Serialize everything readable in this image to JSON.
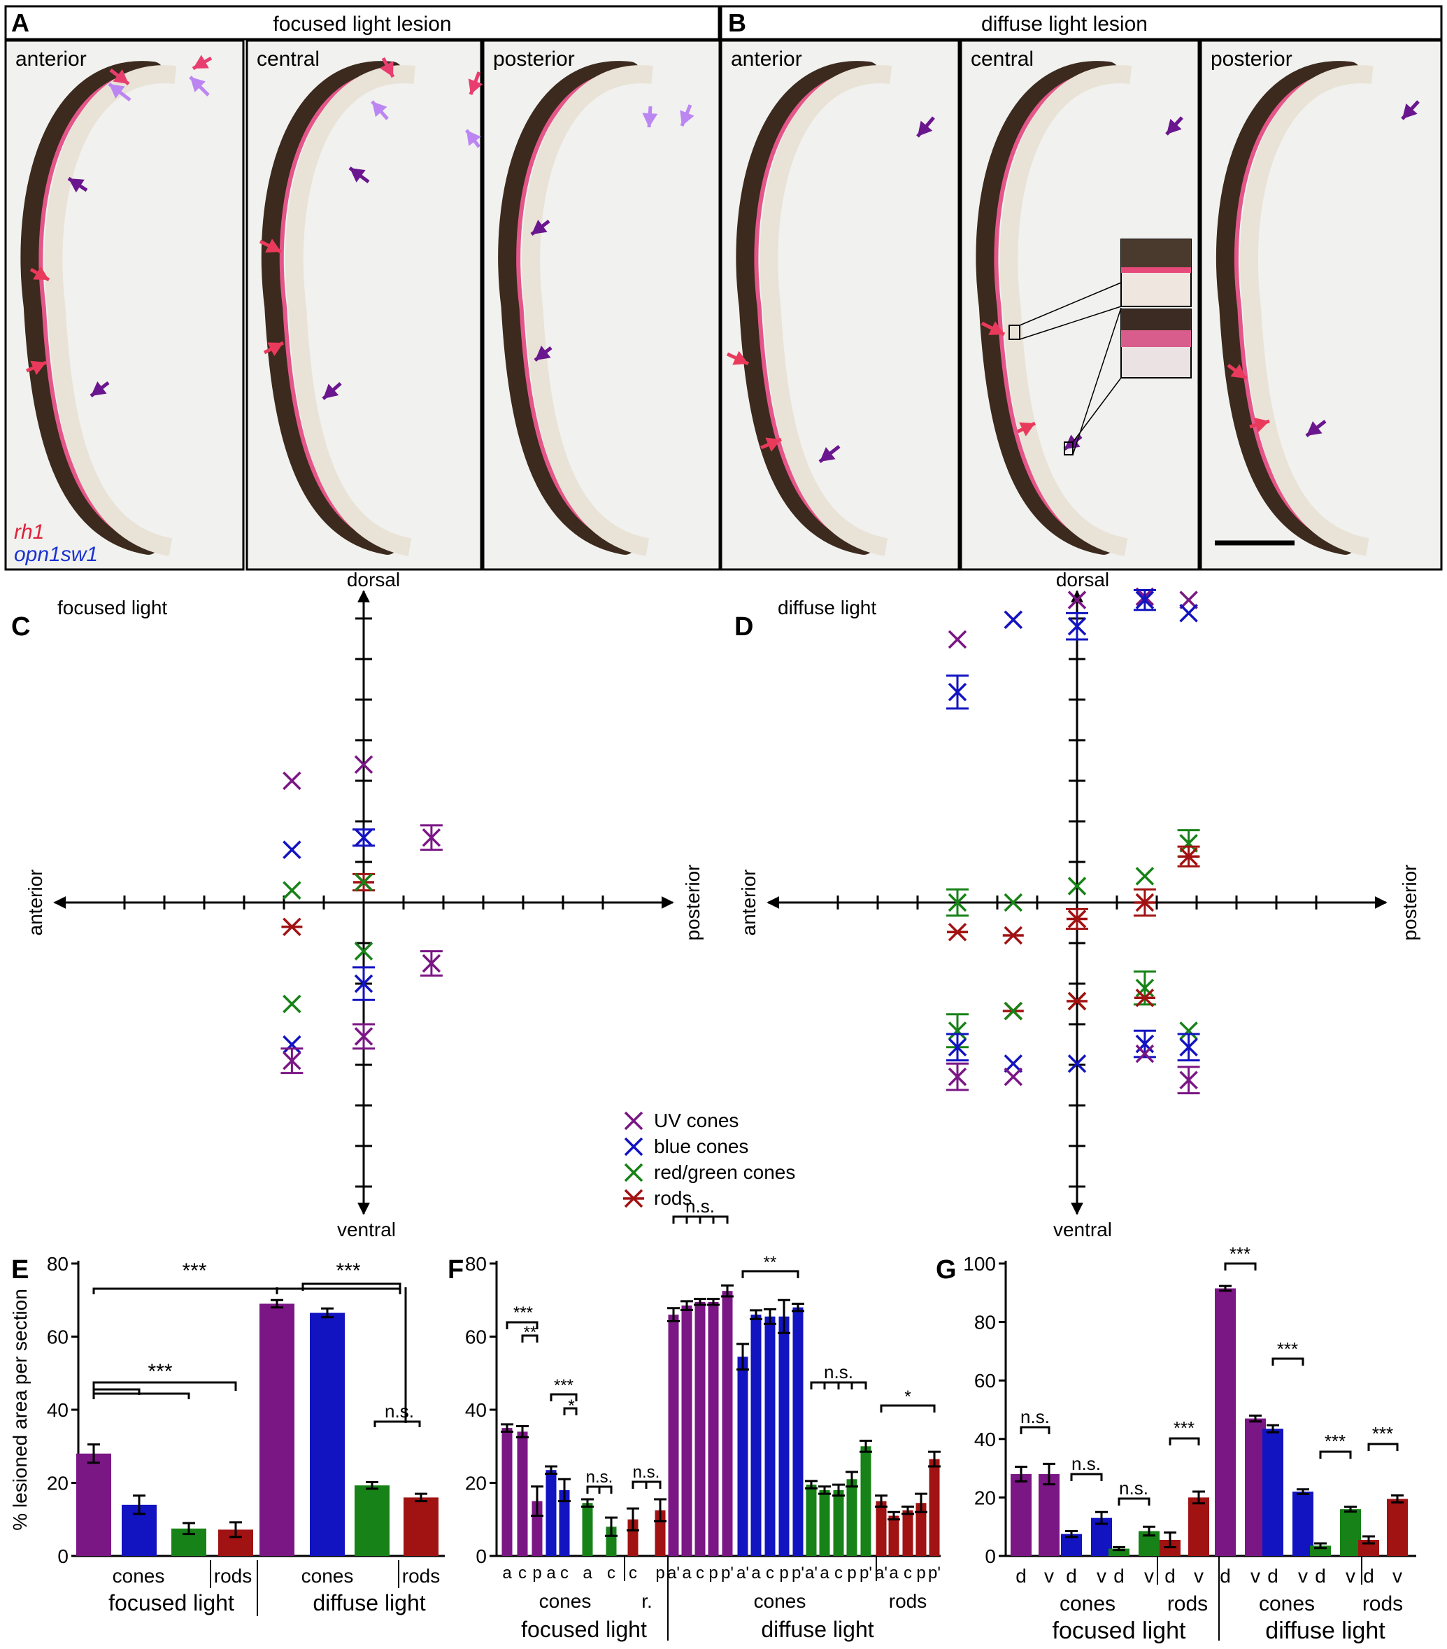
{
  "colors": {
    "uv": "#7b1685",
    "blue": "#1213c1",
    "green": "#178217",
    "red": "#a11212",
    "lesion_arrow": "#ea3a5c",
    "pink_arrow": "#e83d6f",
    "lilac_arrow": "#bc86f2",
    "purple_arrow": "#6a168e",
    "micro_bg": "#f1f1ef",
    "tissue_dark": "#3b2a1d",
    "tissue_light": "#e9e3d7"
  },
  "panel_a": {
    "letter": "A",
    "title": "focused light lesion",
    "sections": [
      "anterior",
      "central",
      "posterior"
    ],
    "gene_labels": [
      "rh1",
      "opn1sw1"
    ]
  },
  "panel_b": {
    "letter": "B",
    "title": "diffuse light lesion",
    "sections": [
      "anterior",
      "central",
      "posterior"
    ]
  },
  "legend": {
    "items": [
      {
        "label": "UV cones",
        "marker": "x-icon",
        "color_key": "uv"
      },
      {
        "label": "blue cones",
        "marker": "x-icon",
        "color_key": "blue"
      },
      {
        "label": "red/green cones",
        "marker": "x-icon",
        "color_key": "green"
      },
      {
        "label": "rods",
        "marker": "asterisk-icon",
        "color_key": "red"
      }
    ]
  },
  "chart_data": [
    {
      "id": "C",
      "type": "scatter",
      "panel_label": "C",
      "title": "focused light",
      "axis_labels": {
        "top": "dorsal",
        "bottom": "ventral",
        "left": "anterior",
        "right": "posterior"
      },
      "x_unit_ticks": 5,
      "y_unit_ticks": 6,
      "points": [
        {
          "series": "UV cones",
          "x": -1.8,
          "y": 3.0
        },
        {
          "series": "blue cones",
          "x": -1.8,
          "y": 1.3
        },
        {
          "series": "red/green cones",
          "x": -1.8,
          "y": 0.3
        },
        {
          "series": "rods",
          "x": -1.8,
          "y": -0.6
        },
        {
          "series": "red/green cones",
          "x": -1.8,
          "y": -2.5
        },
        {
          "series": "blue cones",
          "x": -1.8,
          "y": -3.5
        },
        {
          "series": "UV cones",
          "x": -1.8,
          "y": -3.9,
          "err": 0.3
        },
        {
          "series": "UV cones",
          "x": 0.0,
          "y": 3.4
        },
        {
          "series": "blue cones",
          "x": 0.0,
          "y": 1.6,
          "err": 0.2
        },
        {
          "series": "rods",
          "x": 0.0,
          "y": 0.5,
          "err": 0.2
        },
        {
          "series": "red/green cones",
          "x": 0.0,
          "y": 0.5
        },
        {
          "series": "red/green cones",
          "x": 0.0,
          "y": -1.2
        },
        {
          "series": "blue cones",
          "x": 0.0,
          "y": -2.0,
          "err": 0.4
        },
        {
          "series": "UV cones",
          "x": 0.0,
          "y": -3.3,
          "err": 0.3
        },
        {
          "series": "UV cones",
          "x": 1.7,
          "y": 1.6,
          "err": 0.3
        },
        {
          "series": "UV cones",
          "x": 1.7,
          "y": -1.5,
          "err": 0.3
        }
      ]
    },
    {
      "id": "D",
      "type": "scatter",
      "panel_label": "D",
      "title": "diffuse light",
      "axis_labels": {
        "top": "dorsal",
        "bottom": "ventral",
        "left": "anterior",
        "right": "posterior"
      },
      "x_unit_ticks": 5,
      "y_unit_ticks": 6,
      "points": [
        {
          "series": "UV cones",
          "x": -3.0,
          "y": 8.0
        },
        {
          "series": "blue cones",
          "x": -3.0,
          "y": 6.4,
          "err": 0.5
        },
        {
          "series": "red/green cones",
          "x": -3.0,
          "y": 0.0,
          "err": 0.4
        },
        {
          "series": "rods",
          "x": -3.0,
          "y": -0.9
        },
        {
          "series": "red/green cones",
          "x": -3.0,
          "y": -3.9,
          "err": 0.5
        },
        {
          "series": "blue cones",
          "x": -3.0,
          "y": -4.4,
          "err": 0.4
        },
        {
          "series": "UV cones",
          "x": -3.0,
          "y": -5.3,
          "err": 0.4
        },
        {
          "series": "UV cones",
          "x": -1.6,
          "y": 8.6
        },
        {
          "series": "blue cones",
          "x": -1.6,
          "y": 8.6
        },
        {
          "series": "red/green cones",
          "x": -1.6,
          "y": 0.0
        },
        {
          "series": "rods",
          "x": -1.6,
          "y": -1.0
        },
        {
          "series": "rods",
          "x": -1.6,
          "y": -3.3
        },
        {
          "series": "red/green cones",
          "x": -1.6,
          "y": -3.3
        },
        {
          "series": "blue cones",
          "x": -1.6,
          "y": -4.9
        },
        {
          "series": "UV cones",
          "x": -1.6,
          "y": -5.3
        },
        {
          "series": "UV cones",
          "x": 0.0,
          "y": 9.2
        },
        {
          "series": "blue cones",
          "x": 0.0,
          "y": 8.4,
          "err": 0.4
        },
        {
          "series": "red/green cones",
          "x": 0.0,
          "y": 0.5
        },
        {
          "series": "rods",
          "x": 0.0,
          "y": -0.5,
          "err": 0.3
        },
        {
          "series": "red/green cones",
          "x": 0.0,
          "y": -3.0
        },
        {
          "series": "rods",
          "x": 0.0,
          "y": -3.0
        },
        {
          "series": "blue cones",
          "x": 0.0,
          "y": -4.9
        },
        {
          "series": "UV cones",
          "x": 1.7,
          "y": 9.3
        },
        {
          "series": "blue cones",
          "x": 1.7,
          "y": 9.2,
          "err": 0.3
        },
        {
          "series": "red/green cones",
          "x": 1.7,
          "y": 0.8
        },
        {
          "series": "rods",
          "x": 1.7,
          "y": 0.0,
          "err": 0.4
        },
        {
          "series": "red/green cones",
          "x": 1.7,
          "y": -2.6,
          "err": 0.5
        },
        {
          "series": "rods",
          "x": 1.7,
          "y": -2.9
        },
        {
          "series": "blue cones",
          "x": 1.7,
          "y": -4.3,
          "err": 0.4
        },
        {
          "series": "UV cones",
          "x": 1.7,
          "y": -4.6
        },
        {
          "series": "UV cones",
          "x": 2.8,
          "y": 9.2
        },
        {
          "series": "blue cones",
          "x": 2.8,
          "y": 8.8
        },
        {
          "series": "red/green cones",
          "x": 2.8,
          "y": 1.8,
          "err": 0.4
        },
        {
          "series": "rods",
          "x": 2.8,
          "y": 1.4,
          "err": 0.3
        },
        {
          "series": "red/green cones",
          "x": 2.8,
          "y": -3.9
        },
        {
          "series": "blue cones",
          "x": 2.8,
          "y": -4.4,
          "err": 0.4
        },
        {
          "series": "UV cones",
          "x": 2.8,
          "y": -5.4,
          "err": 0.4
        }
      ]
    },
    {
      "id": "E",
      "type": "bar",
      "panel_label": "E",
      "ylabel": "% lesioned area per section",
      "ylim": [
        0,
        80
      ],
      "yticks": [
        0,
        20,
        40,
        60,
        80
      ],
      "bars": [
        {
          "group": "focused light",
          "class": "cones",
          "series": "UV cones",
          "value": 28,
          "err": 2.5
        },
        {
          "group": "focused light",
          "class": "cones",
          "series": "blue cones",
          "value": 14,
          "err": 2.5
        },
        {
          "group": "focused light",
          "class": "cones",
          "series": "red/green cones",
          "value": 7.5,
          "err": 1.5
        },
        {
          "group": "focused light",
          "class": "rods",
          "series": "rods",
          "value": 7.2,
          "err": 2.0
        },
        {
          "group": "diffuse light",
          "class": "cones",
          "series": "UV cones",
          "value": 69,
          "err": 1.0
        },
        {
          "group": "diffuse light",
          "class": "cones",
          "series": "blue cones",
          "value": 66.5,
          "err": 1.2
        },
        {
          "group": "diffuse light",
          "class": "cones",
          "series": "red/green cones",
          "value": 19.3,
          "err": 0.9
        },
        {
          "group": "diffuse light",
          "class": "rods",
          "series": "rods",
          "value": 16,
          "err": 1.0
        }
      ],
      "x_sublabels": [
        "cones",
        "rods",
        "cones",
        "rods"
      ],
      "x_grouplabels": [
        "focused light",
        "diffuse light"
      ],
      "significance": [
        "***",
        "***",
        "***",
        "n.s."
      ]
    },
    {
      "id": "F",
      "type": "bar",
      "panel_label": "F",
      "ylim": [
        0,
        80
      ],
      "yticks": [
        0,
        20,
        40,
        60,
        80
      ],
      "bars": [
        {
          "series": "UV cones",
          "cond": "focused",
          "label": "a",
          "value": 35,
          "err": 1.0
        },
        {
          "series": "UV cones",
          "cond": "focused",
          "label": "c",
          "value": 34,
          "err": 1.5
        },
        {
          "series": "UV cones",
          "cond": "focused",
          "label": "p",
          "value": 15,
          "err": 4.0
        },
        {
          "series": "blue cones",
          "cond": "focused",
          "label": "a",
          "value": 23.5,
          "err": 1.0
        },
        {
          "series": "blue cones",
          "cond": "focused",
          "label": "c",
          "value": 18,
          "err": 3.0
        },
        {
          "series": "red/green cones",
          "cond": "focused",
          "label": "a",
          "value": 14.5,
          "err": 1.0
        },
        {
          "series": "red/green cones",
          "cond": "focused",
          "label": "c",
          "value": 8,
          "err": 2.5
        },
        {
          "series": "rods",
          "cond": "focused",
          "label": "c",
          "value": 10,
          "err": 3.0
        },
        {
          "series": "rods",
          "cond": "focused",
          "label": "p",
          "value": 12.5,
          "err": 3.0
        },
        {
          "series": "UV cones",
          "cond": "diffuse",
          "label": "a'",
          "value": 66,
          "err": 1.8
        },
        {
          "series": "UV cones",
          "cond": "diffuse",
          "label": "a",
          "value": 68.5,
          "err": 1.2
        },
        {
          "series": "UV cones",
          "cond": "diffuse",
          "label": "c",
          "value": 69.5,
          "err": 0.8
        },
        {
          "series": "UV cones",
          "cond": "diffuse",
          "label": "p",
          "value": 69.5,
          "err": 0.8
        },
        {
          "series": "UV cones",
          "cond": "diffuse",
          "label": "p'",
          "value": 72.5,
          "err": 1.5
        },
        {
          "series": "blue cones",
          "cond": "diffuse",
          "label": "a'",
          "value": 54.5,
          "err": 3.5
        },
        {
          "series": "blue cones",
          "cond": "diffuse",
          "label": "a",
          "value": 66,
          "err": 1.2
        },
        {
          "series": "blue cones",
          "cond": "diffuse",
          "label": "c",
          "value": 65.5,
          "err": 2.0
        },
        {
          "series": "blue cones",
          "cond": "diffuse",
          "label": "p",
          "value": 65.5,
          "err": 4.5
        },
        {
          "series": "blue cones",
          "cond": "diffuse",
          "label": "p'",
          "value": 68,
          "err": 1.0
        },
        {
          "series": "red/green cones",
          "cond": "diffuse",
          "label": "a'",
          "value": 19.5,
          "err": 1.0
        },
        {
          "series": "red/green cones",
          "cond": "diffuse",
          "label": "a",
          "value": 18,
          "err": 1.0
        },
        {
          "series": "red/green cones",
          "cond": "diffuse",
          "label": "c",
          "value": 18,
          "err": 1.5
        },
        {
          "series": "red/green cones",
          "cond": "diffuse",
          "label": "p",
          "value": 21,
          "err": 2.0
        },
        {
          "series": "red/green cones",
          "cond": "diffuse",
          "label": "p'",
          "value": 30,
          "err": 1.5
        },
        {
          "series": "rods",
          "cond": "diffuse",
          "label": "a'",
          "value": 15,
          "err": 1.5
        },
        {
          "series": "rods",
          "cond": "diffuse",
          "label": "a",
          "value": 11,
          "err": 1.0
        },
        {
          "series": "rods",
          "cond": "diffuse",
          "label": "c",
          "value": 12.5,
          "err": 1.0
        },
        {
          "series": "rods",
          "cond": "diffuse",
          "label": "p",
          "value": 14.5,
          "err": 2.5
        },
        {
          "series": "rods",
          "cond": "diffuse",
          "label": "p'",
          "value": 26.5,
          "err": 2.0
        }
      ],
      "x_sublabels": [
        "cones",
        "r.",
        "cones",
        "rods"
      ],
      "x_grouplabels": [
        "focused light",
        "diffuse light"
      ],
      "significance": [
        "***",
        "**",
        "***",
        "*",
        "n.s.",
        "n.s.",
        "n.s.",
        "**",
        "n.s.",
        "*"
      ]
    },
    {
      "id": "G",
      "type": "bar",
      "panel_label": "G",
      "ylim": [
        0,
        100
      ],
      "yticks": [
        0,
        20,
        40,
        60,
        80,
        100
      ],
      "bars": [
        {
          "series": "UV cones",
          "cond": "focused",
          "label": "d",
          "value": 28,
          "err": 2.5
        },
        {
          "series": "UV cones",
          "cond": "focused",
          "label": "v",
          "value": 28,
          "err": 3.5
        },
        {
          "series": "blue cones",
          "cond": "focused",
          "label": "d",
          "value": 7.5,
          "err": 1.0
        },
        {
          "series": "blue cones",
          "cond": "focused",
          "label": "v",
          "value": 13,
          "err": 2.0
        },
        {
          "series": "red/green cones",
          "cond": "focused",
          "label": "d",
          "value": 2.5,
          "err": 0.5
        },
        {
          "series": "red/green cones",
          "cond": "focused",
          "label": "v",
          "value": 8.5,
          "err": 1.5
        },
        {
          "series": "rods",
          "cond": "focused",
          "label": "d",
          "value": 5.5,
          "err": 2.5
        },
        {
          "series": "rods",
          "cond": "focused",
          "label": "v",
          "value": 20,
          "err": 2.0
        },
        {
          "series": "UV cones",
          "cond": "diffuse",
          "label": "d",
          "value": 91.5,
          "err": 0.8
        },
        {
          "series": "UV cones",
          "cond": "diffuse",
          "label": "v",
          "value": 47,
          "err": 1.0
        },
        {
          "series": "blue cones",
          "cond": "diffuse",
          "label": "d",
          "value": 43.5,
          "err": 1.2
        },
        {
          "series": "blue cones",
          "cond": "diffuse",
          "label": "v",
          "value": 22,
          "err": 0.8
        },
        {
          "series": "red/green cones",
          "cond": "diffuse",
          "label": "d",
          "value": 3.5,
          "err": 0.8
        },
        {
          "series": "red/green cones",
          "cond": "diffuse",
          "label": "v",
          "value": 16,
          "err": 0.8
        },
        {
          "series": "rods",
          "cond": "diffuse",
          "label": "d",
          "value": 5.5,
          "err": 1.2
        },
        {
          "series": "rods",
          "cond": "diffuse",
          "label": "v",
          "value": 19.5,
          "err": 1.2
        }
      ],
      "x_sublabels": [
        "cones",
        "rods",
        "cones",
        "rods"
      ],
      "x_grouplabels": [
        "focused light",
        "diffuse light"
      ],
      "significance": [
        "n.s.",
        "n.s.",
        "n.s.",
        "***",
        "***",
        "***",
        "***",
        "***"
      ]
    }
  ]
}
